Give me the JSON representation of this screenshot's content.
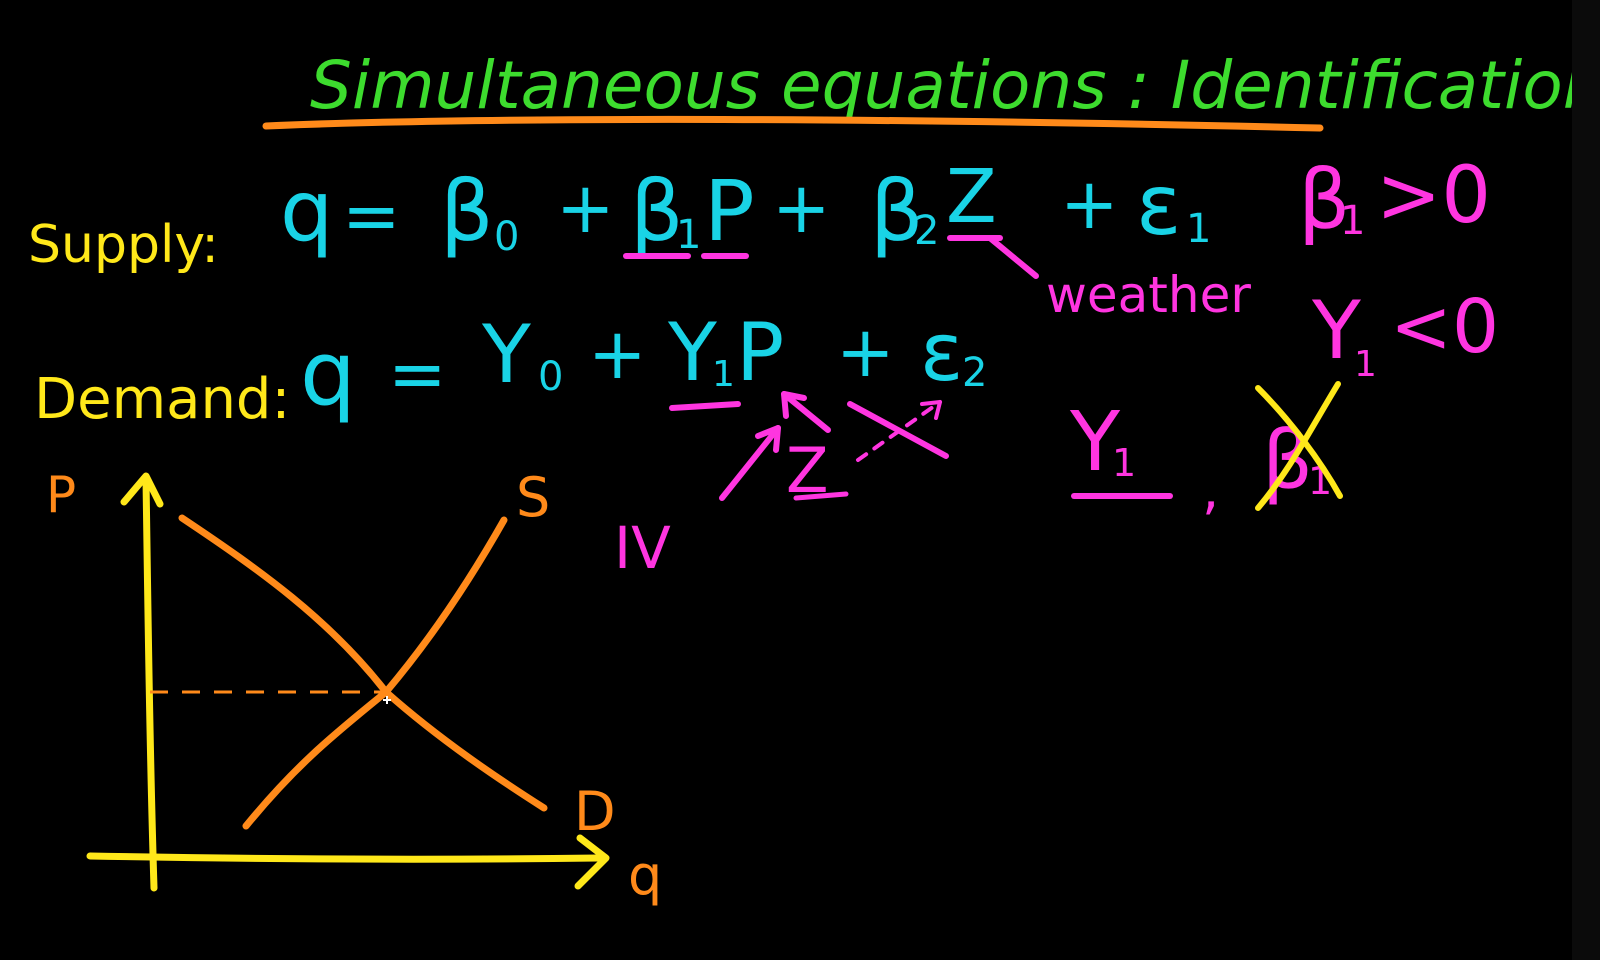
{
  "title": "Simultaneous equations : Identification",
  "supply": {
    "label": "Supply:",
    "q": "q",
    "eq": "=",
    "beta0": "β",
    "beta0_sub": "0",
    "plus1": "+",
    "beta1": "β",
    "beta1_sub": "1",
    "p": "P",
    "plus2": "+",
    "beta2": "β",
    "beta2_sub": "2",
    "z": "Z",
    "plus3": "+",
    "eps": "ε",
    "eps_sub": "1",
    "note_weather": "weather"
  },
  "demand": {
    "label": "Demand:",
    "q": "q",
    "eq": "=",
    "gamma0": "Υ",
    "gamma0_sub": "0",
    "plus1": "+",
    "gamma1": "Υ",
    "gamma1_sub": "1",
    "p": "P",
    "plus2": "+",
    "eps": "ε",
    "eps_sub": "2"
  },
  "conditions": {
    "beta_cond": "β",
    "beta_cond_sub": "1",
    "beta_cond_rel": ">0",
    "gamma_cond": "Υ",
    "gamma_cond_sub": "1",
    "gamma_cond_rel": "<0"
  },
  "iv": {
    "label": "IV",
    "z": "Z"
  },
  "identified": {
    "gamma": "Υ",
    "gamma_sub": "1",
    "comma": ",",
    "beta": "β",
    "beta_sub": "1"
  },
  "graph": {
    "y_axis_label": "P",
    "x_axis_label": "q",
    "supply_label": "S",
    "demand_label": "D"
  },
  "colors": {
    "background": "#000000",
    "title": "#3ddc2e",
    "underline": "#ff8a1a",
    "label": "#ffe81a",
    "equation": "#19d3e6",
    "magenta": "#ff35e0",
    "orange": "#ff8a1a",
    "axes": "#ffe81a"
  }
}
